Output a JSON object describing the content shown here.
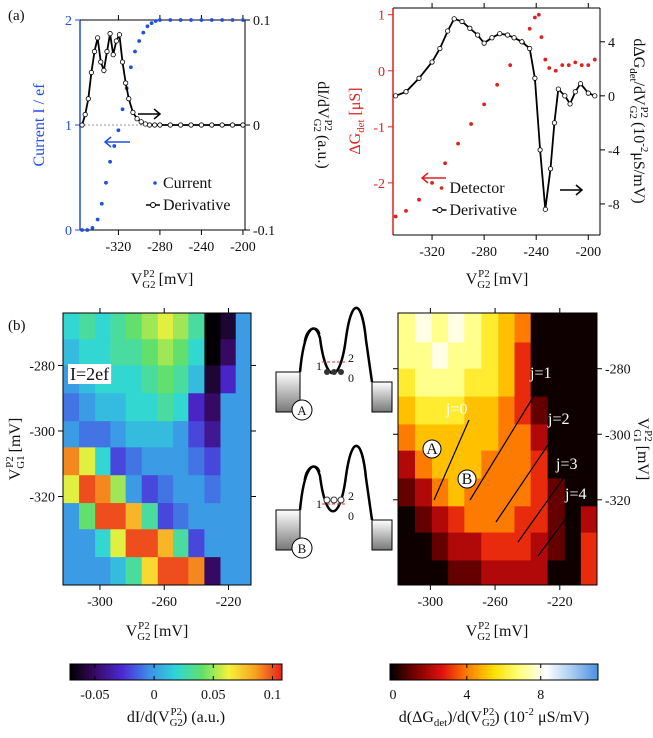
{
  "panel_labels": [
    "(a)",
    "(b)"
  ],
  "diagrams": [
    {
      "circle": "A",
      "levels": [
        "1",
        "2",
        "0"
      ]
    },
    {
      "circle": "B",
      "levels": [
        "1",
        "2",
        "0"
      ]
    }
  ],
  "chart_data": [
    {
      "type": "line",
      "xlim": [
        -357,
        -198
      ],
      "xticks": [
        -320,
        -280,
        -240,
        -200
      ],
      "ylim": [
        0,
        2
      ],
      "yticks": [
        0,
        1,
        2
      ],
      "y2lim": [
        -0.1,
        0.1
      ],
      "y2ticks": [
        -0.1,
        0,
        0.1
      ],
      "ycolor": "#1f4fe8",
      "grid": true,
      "legend": "lower right",
      "xlabel": [
        "V",
        {
          "sup": "P2",
          "sub": "G2"
        },
        " [mV]"
      ],
      "ylabel": [
        "Current  I / ef"
      ],
      "y2label": [
        "dI/dV",
        {
          "sup": "P2",
          "sub": "G2"
        },
        " (a.u.)"
      ],
      "series": [
        {
          "name": "Current",
          "color": "#1f4fe8",
          "marker": "dot",
          "x": [
            -355,
            -350,
            -345,
            -340,
            -336,
            -332,
            -328,
            -324,
            -320,
            -316,
            -312,
            -308,
            -304,
            -300,
            -296,
            -292,
            -288,
            -284,
            -280,
            -270,
            -260,
            -250,
            -240,
            -230,
            -220,
            -210,
            -200
          ],
          "values": [
            0,
            0,
            0.02,
            0.1,
            0.25,
            0.45,
            0.65,
            0.8,
            0.95,
            1.15,
            1.35,
            1.55,
            1.7,
            1.8,
            1.88,
            1.94,
            1.97,
            1.99,
            2,
            2,
            2,
            2,
            2,
            2,
            2,
            2,
            2
          ]
        },
        {
          "name": "Derivative",
          "color": "#000000",
          "marker": "circle",
          "axis": "y2",
          "x": [
            -355,
            -352,
            -349,
            -346,
            -343,
            -340,
            -337,
            -334,
            -331,
            -328,
            -325,
            -322,
            -319,
            -316,
            -313,
            -310,
            -306,
            -302,
            -298,
            -294,
            -290,
            -285,
            -280,
            -270,
            -260,
            -250,
            -240,
            -230,
            -220,
            -210,
            -200
          ],
          "values": [
            0,
            0.01,
            0.025,
            0.05,
            0.07,
            0.083,
            0.06,
            0.052,
            0.07,
            0.087,
            0.067,
            0.08,
            0.086,
            0.06,
            0.04,
            0.025,
            0.012,
            0.006,
            0.003,
            0.001,
            0,
            0,
            0,
            0,
            0,
            0,
            0,
            0,
            0,
            0,
            0
          ]
        }
      ]
    },
    {
      "type": "line",
      "xlim": [
        -350,
        -191
      ],
      "xticks": [
        -320,
        -280,
        -240,
        -200
      ],
      "ylim": [
        -2.93,
        1.12
      ],
      "yticks": [
        -2,
        -1,
        0,
        1
      ],
      "y2lim": [
        -10.3,
        6.5
      ],
      "y2ticks": [
        -8,
        -4,
        0,
        4
      ],
      "ycolor": "#e02020",
      "grid": false,
      "legend": "lower center",
      "xlabel": [
        "V",
        {
          "sup": "P2",
          "sub": "G2"
        },
        " [mV]"
      ],
      "ylabel": [
        "ΔG",
        {
          "sub": "det"
        },
        " [μS]"
      ],
      "y2label": [
        "dΔG",
        {
          "sub": "det"
        },
        "/dV",
        {
          "sup": "P2",
          "sub": "G2"
        },
        " (10",
        {
          "sup": "-2"
        },
        "μS/mV)"
      ],
      "series": [
        {
          "name": "Detector",
          "color": "#e02020",
          "marker": "dot",
          "x": [
            -348,
            -340,
            -330,
            -320,
            -310,
            -300,
            -290,
            -280,
            -270,
            -260,
            -250,
            -245,
            -241,
            -238,
            -236,
            -233,
            -230,
            -225,
            -220,
            -215,
            -210,
            -205,
            -200,
            -195
          ],
          "values": [
            -2.6,
            -2.5,
            -2.3,
            -2.0,
            -1.65,
            -1.3,
            -0.95,
            -0.6,
            -0.25,
            0.1,
            0.5,
            0.75,
            0.95,
            1.0,
            0.6,
            0.2,
            0.05,
            0.0,
            0.1,
            0.1,
            0.15,
            0.1,
            0.1,
            0.2
          ]
        },
        {
          "name": "Derivative",
          "color": "#000000",
          "marker": "circle",
          "axis": "y2",
          "x": [
            -348,
            -340,
            -330,
            -320,
            -314,
            -308,
            -303,
            -297,
            -291,
            -285,
            -280,
            -274,
            -268,
            -262,
            -257,
            -251,
            -245,
            -241,
            -237,
            -233,
            -229,
            -226,
            -223,
            -218,
            -214,
            -210,
            -206,
            -200,
            -195
          ],
          "values": [
            0,
            0.3,
            1.3,
            2.5,
            3.5,
            4.8,
            5.7,
            5.5,
            5,
            4.5,
            3.9,
            4.3,
            4.6,
            4.5,
            4.3,
            4,
            3.5,
            1.3,
            -4,
            -8.4,
            -5.4,
            -2,
            0.5,
            0,
            -0.6,
            0.3,
            0.9,
            0.2,
            0
          ]
        }
      ]
    },
    {
      "type": "heatmap",
      "xlim": [
        -323,
        -206
      ],
      "xticks": [
        -300,
        -260,
        -220
      ],
      "ylim": [
        -347,
        -264
      ],
      "yticks": [
        -320,
        -300,
        -280
      ],
      "yaxis_side": "left",
      "xlabel": [
        "V",
        {
          "sup": "P2",
          "sub": "G2"
        },
        " [mV]"
      ],
      "ylabel": [
        "V",
        {
          "sup": "P2",
          "sub": "G1"
        },
        " [mV]"
      ],
      "annotations": [
        "I=2ef"
      ],
      "x": [
        -318,
        -308,
        -298,
        -289,
        -279,
        -269,
        -259,
        -250,
        -240,
        -230,
        -220,
        -211
      ],
      "y": [
        -268,
        -276,
        -284,
        -293,
        -301,
        -309,
        -318,
        -326,
        -334,
        -343
      ],
      "z": [
        [
          0.02,
          0.03,
          0.02,
          0.03,
          0.04,
          0.05,
          0.06,
          0.05,
          0.03,
          -0.07,
          -0.06,
          0.0
        ],
        [
          0.01,
          0.02,
          0.02,
          0.03,
          0.03,
          0.04,
          0.05,
          0.04,
          0.02,
          -0.07,
          -0.05,
          0.0
        ],
        [
          0.0,
          0.01,
          0.02,
          0.02,
          0.02,
          0.03,
          0.04,
          0.03,
          0.01,
          -0.06,
          -0.03,
          0.0
        ],
        [
          -0.01,
          0.0,
          0.01,
          0.01,
          0.02,
          0.02,
          0.03,
          0.02,
          -0.03,
          -0.05,
          0.0,
          0.0
        ],
        [
          0.0,
          -0.01,
          -0.01,
          0.0,
          0.01,
          0.01,
          0.01,
          0.0,
          -0.02,
          -0.04,
          0.0,
          0.0
        ],
        [
          0.09,
          0.06,
          0.02,
          -0.02,
          -0.01,
          0.0,
          0.0,
          0.0,
          -0.01,
          -0.02,
          0.0,
          0.0
        ],
        [
          0.06,
          0.1,
          0.09,
          0.05,
          0.0,
          -0.02,
          -0.01,
          0.0,
          0.0,
          -0.01,
          0.0,
          0.0
        ],
        [
          0.0,
          0.04,
          0.1,
          0.1,
          0.08,
          0.03,
          -0.02,
          -0.01,
          0.0,
          0.0,
          0.0,
          0.0
        ],
        [
          0.0,
          0.0,
          0.02,
          0.06,
          0.1,
          0.1,
          0.08,
          0.03,
          -0.02,
          0.0,
          0.0,
          0.0
        ],
        [
          0.0,
          0.0,
          0.0,
          0.01,
          0.03,
          0.07,
          0.1,
          0.1,
          0.09,
          -0.05,
          0.0,
          0.0
        ]
      ],
      "zlim": [
        -0.071,
        0.108
      ],
      "zticks": [
        -0.05,
        0,
        0.05,
        0.1
      ],
      "colormap": [
        "#000000",
        "#3a0a6a",
        "#4b2bd6",
        "#3f8fe8",
        "#2fd6d8",
        "#63e06a",
        "#f6f23a",
        "#f8a020",
        "#e8201c"
      ],
      "colorbar_label": [
        "dI/d(V",
        {
          "sup": "P2",
          "sub": "G2"
        },
        ") (a.u.)"
      ]
    },
    {
      "type": "heatmap",
      "xlim": [
        -320,
        -197
      ],
      "xticks": [
        -300,
        -260,
        -220
      ],
      "ylim": [
        -346,
        -263
      ],
      "yticks": [
        -320,
        -300,
        -280
      ],
      "yaxis_side": "right",
      "xlabel": [
        "V",
        {
          "sup": "P2",
          "sub": "G2"
        },
        " [mV]"
      ],
      "ylabel": [
        "V",
        {
          "sup": "P2",
          "sub": "G1"
        },
        " [mV]"
      ],
      "annotations": [
        "j=0",
        "j=1",
        "j=2",
        "j=3",
        "j=4",
        "A",
        "B"
      ],
      "x": [
        -315,
        -304,
        -294,
        -284,
        -274,
        -263,
        -253,
        -243,
        -233,
        -222,
        -212,
        -202
      ],
      "y": [
        -268,
        -276,
        -284,
        -293,
        -301,
        -309,
        -318,
        -326,
        -334,
        -343
      ],
      "z": [
        [
          7,
          8,
          7,
          8,
          7,
          6,
          5,
          4,
          0,
          0,
          0,
          0
        ],
        [
          7,
          7,
          8,
          7,
          7,
          6,
          5,
          3,
          0,
          0,
          0,
          0
        ],
        [
          6,
          7,
          7,
          7,
          6,
          6,
          5,
          3,
          0,
          0,
          0,
          0
        ],
        [
          5,
          6,
          6,
          6,
          5,
          5,
          4,
          3,
          1,
          0,
          0,
          0
        ],
        [
          4,
          5,
          5,
          5,
          5,
          5,
          4,
          4,
          2,
          0,
          0,
          0
        ],
        [
          2,
          4,
          5,
          5,
          5,
          4,
          4,
          4,
          3,
          0,
          0,
          0
        ],
        [
          1,
          2,
          4,
          5,
          4,
          4,
          4,
          4,
          3,
          1,
          0,
          0
        ],
        [
          0,
          1,
          2,
          3,
          4,
          4,
          4,
          3,
          3,
          1,
          0,
          2
        ],
        [
          0,
          0,
          1,
          2,
          2,
          3,
          3,
          3,
          2,
          1,
          0,
          3
        ],
        [
          0,
          0,
          0,
          1,
          1,
          2,
          2,
          2,
          2,
          0,
          0,
          3
        ]
      ],
      "zlim": [
        -0.16,
        11.1
      ],
      "zticks": [
        0,
        4,
        8
      ],
      "colormap": [
        "#000000",
        "#7a0000",
        "#e01010",
        "#ff8000",
        "#ffe000",
        "#ffff80",
        "#ffffff",
        "#a8ccf0",
        "#4a90e0"
      ],
      "colorbar_label": [
        "d(ΔG",
        {
          "sub": "det"
        },
        ")/d(V",
        {
          "sup": "P2",
          "sub": "G2"
        },
        ") (10",
        {
          "sup": "-2"
        },
        " μS/mV)"
      ]
    }
  ]
}
